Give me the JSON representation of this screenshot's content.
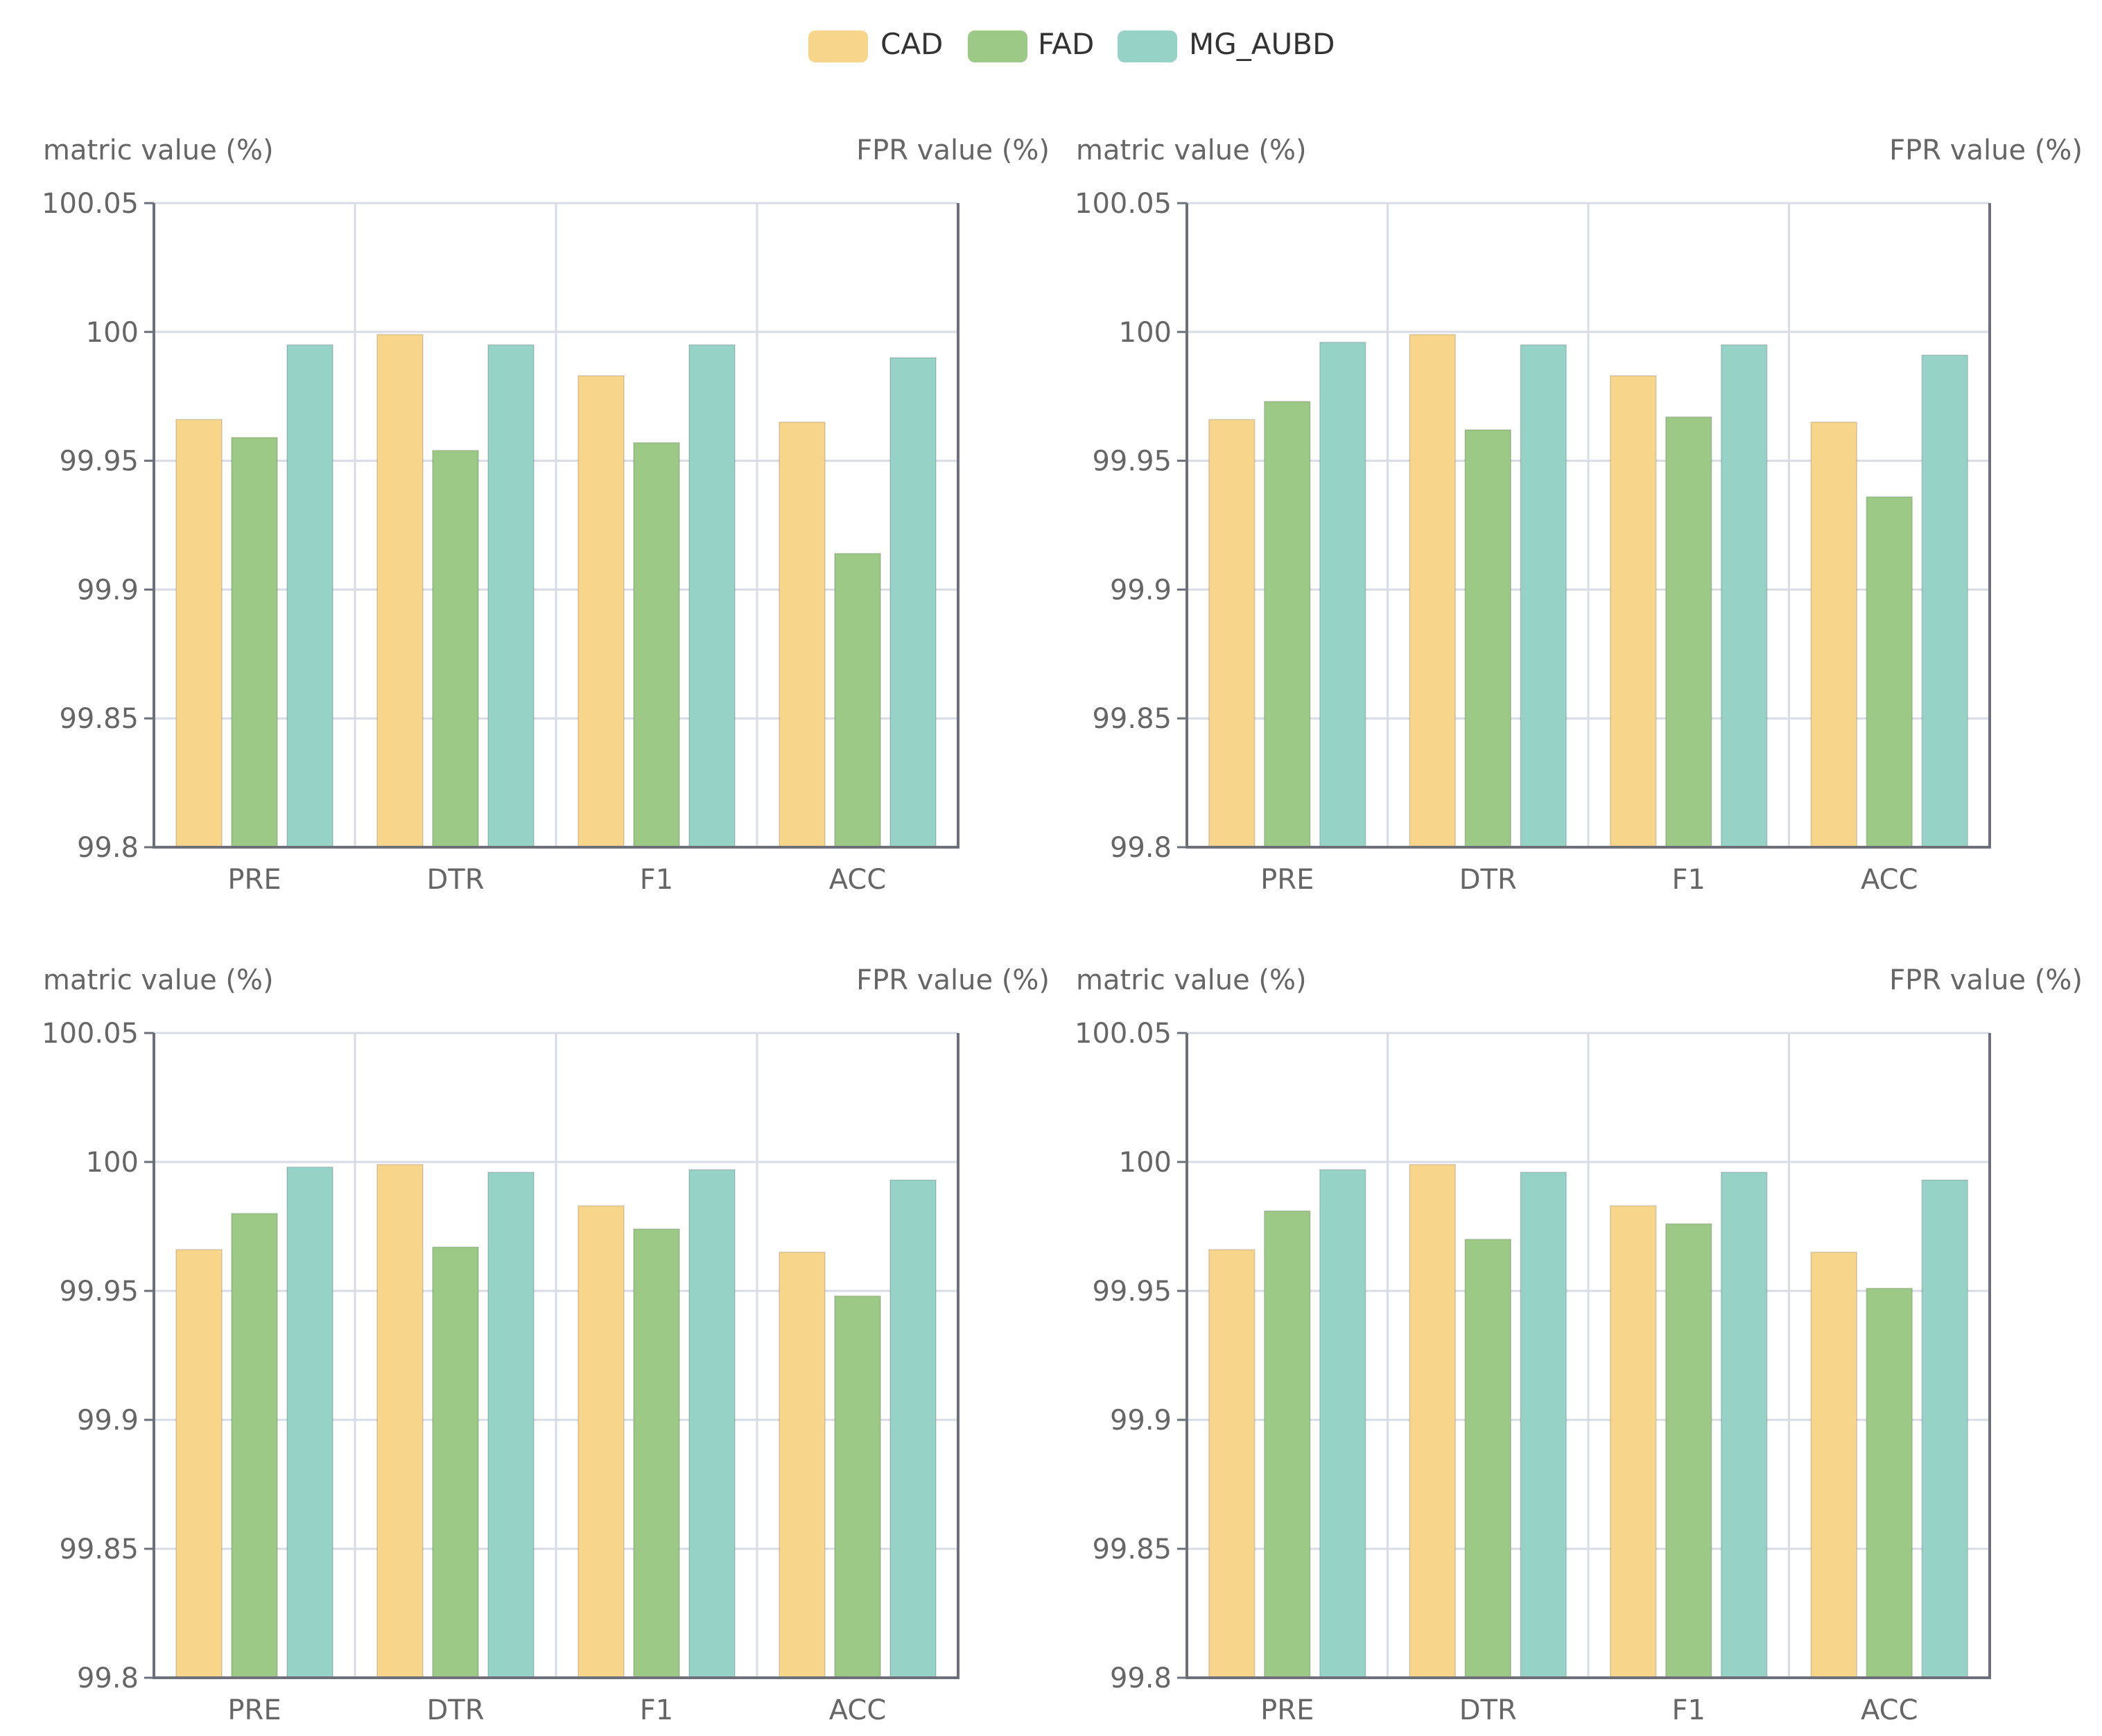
{
  "chart_data": {
    "type": "bar",
    "legend": [
      {
        "name": "CAD",
        "color": "#F7D68C"
      },
      {
        "name": "FAD",
        "color": "#9CC985"
      },
      {
        "name": "MG_AUBD",
        "color": "#97D2C6"
      }
    ],
    "charts": [
      {
        "ylabel": "matric value (%)",
        "ylabel_right": "FPR value (%)",
        "ylim": [
          99.8,
          100.05
        ],
        "yticks": [
          "100.05",
          "100",
          "99.95",
          "99.9",
          "99.85",
          "99.8"
        ],
        "categories": [
          "PRE",
          "DTR",
          "F1",
          "ACC"
        ],
        "series": [
          {
            "name": "CAD",
            "values": [
              99.966,
              99.999,
              99.983,
              99.965
            ]
          },
          {
            "name": "FAD",
            "values": [
              99.959,
              99.954,
              99.957,
              99.914
            ]
          },
          {
            "name": "MG_AUBD",
            "values": [
              99.995,
              99.995,
              99.995,
              99.99
            ]
          }
        ]
      },
      {
        "ylabel": "matric value (%)",
        "ylabel_right": "FPR value (%)",
        "ylim": [
          99.8,
          100.05
        ],
        "yticks": [
          "100.05",
          "100",
          "99.95",
          "99.9",
          "99.85",
          "99.8"
        ],
        "categories": [
          "PRE",
          "DTR",
          "F1",
          "ACC"
        ],
        "series": [
          {
            "name": "CAD",
            "values": [
              99.966,
              99.999,
              99.983,
              99.965
            ]
          },
          {
            "name": "FAD",
            "values": [
              99.973,
              99.962,
              99.967,
              99.936
            ]
          },
          {
            "name": "MG_AUBD",
            "values": [
              99.996,
              99.995,
              99.995,
              99.991
            ]
          }
        ]
      },
      {
        "ylabel": "matric value (%)",
        "ylabel_right": "FPR value (%)",
        "ylim": [
          99.8,
          100.05
        ],
        "yticks": [
          "100.05",
          "100",
          "99.95",
          "99.9",
          "99.85",
          "99.8"
        ],
        "categories": [
          "PRE",
          "DTR",
          "F1",
          "ACC"
        ],
        "series": [
          {
            "name": "CAD",
            "values": [
              99.966,
              99.999,
              99.983,
              99.965
            ]
          },
          {
            "name": "FAD",
            "values": [
              99.98,
              99.967,
              99.974,
              99.948
            ]
          },
          {
            "name": "MG_AUBD",
            "values": [
              99.998,
              99.996,
              99.997,
              99.993
            ]
          }
        ]
      },
      {
        "ylabel": "matric value (%)",
        "ylabel_right": "FPR value (%)",
        "ylim": [
          99.8,
          100.05
        ],
        "yticks": [
          "100.05",
          "100",
          "99.95",
          "99.9",
          "99.85",
          "99.8"
        ],
        "categories": [
          "PRE",
          "DTR",
          "F1",
          "ACC"
        ],
        "series": [
          {
            "name": "CAD",
            "values": [
              99.966,
              99.999,
              99.983,
              99.965
            ]
          },
          {
            "name": "FAD",
            "values": [
              99.981,
              99.97,
              99.976,
              99.951
            ]
          },
          {
            "name": "MG_AUBD",
            "values": [
              99.997,
              99.996,
              99.996,
              99.993
            ]
          }
        ]
      }
    ]
  }
}
